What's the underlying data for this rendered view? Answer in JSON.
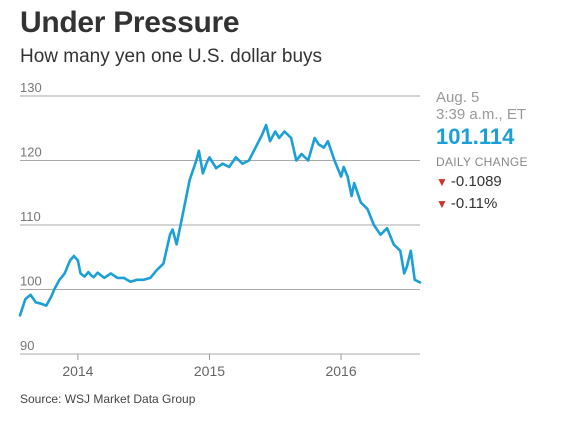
{
  "header": {
    "title": "Under Pressure",
    "subtitle": "How many yen one U.S. dollar buys"
  },
  "panel": {
    "date": "Aug. 5",
    "time": "3:39 a.m., ET",
    "value": "101.114",
    "change_label": "DAILY CHANGE",
    "change_abs": "-0.1089",
    "change_pct": "-0.11%",
    "arrow_icon": "down-triangle-icon"
  },
  "source": "Source: WSJ Market Data Group",
  "colors": {
    "line": "#1a9fd6",
    "grid": "#aaaaaa",
    "value": "#1a9fd6",
    "down": "#d0312d"
  },
  "chart_data": {
    "type": "line",
    "title": "Under Pressure",
    "subtitle": "How many yen one U.S. dollar buys",
    "ylim": [
      90,
      130
    ],
    "yticks": [
      130,
      120,
      110,
      100,
      90
    ],
    "xlim": [
      2013.56,
      2016.6
    ],
    "xticks": [
      2014,
      2015,
      2016
    ],
    "grid": "horizontal",
    "series": [
      {
        "x": [
          2013.56,
          2013.6,
          2013.64,
          2013.68,
          2013.72,
          2013.76,
          2013.8,
          2013.82,
          2013.86,
          2013.9,
          2013.94,
          2013.97,
          2014.0,
          2014.02,
          2014.05,
          2014.08,
          2014.1,
          2014.12,
          2014.15,
          2014.2,
          2014.25,
          2014.3,
          2014.35,
          2014.4,
          2014.45,
          2014.5,
          2014.55,
          2014.6,
          2014.65,
          2014.7,
          2014.72,
          2014.75,
          2014.8,
          2014.85,
          2014.9,
          2014.92,
          2014.95,
          2014.98,
          2015.0,
          2015.05,
          2015.1,
          2015.15,
          2015.2,
          2015.25,
          2015.3,
          2015.35,
          2015.4,
          2015.43,
          2015.46,
          2015.5,
          2015.53,
          2015.57,
          2015.62,
          2015.66,
          2015.7,
          2015.75,
          2015.8,
          2015.83,
          2015.87,
          2015.9,
          2015.95,
          2016.0,
          2016.02,
          2016.05,
          2016.08,
          2016.1,
          2016.15,
          2016.2,
          2016.25,
          2016.3,
          2016.35,
          2016.4,
          2016.45,
          2016.48,
          2016.5,
          2016.53,
          2016.56,
          2016.6
        ],
        "y": [
          96.0,
          98.5,
          99.2,
          98.0,
          97.8,
          97.5,
          99.0,
          100.0,
          101.5,
          102.5,
          104.5,
          105.2,
          104.5,
          102.5,
          102.0,
          102.7,
          102.2,
          101.9,
          102.6,
          101.8,
          102.5,
          101.8,
          101.8,
          101.2,
          101.5,
          101.5,
          101.8,
          103.0,
          104.0,
          108.5,
          109.3,
          107.0,
          112.0,
          117.0,
          120.0,
          121.5,
          118.0,
          119.7,
          120.5,
          118.8,
          119.5,
          119.0,
          120.5,
          119.5,
          120.0,
          122.0,
          124.0,
          125.5,
          123.0,
          124.5,
          123.5,
          124.5,
          123.5,
          120.0,
          121.0,
          120.0,
          123.5,
          122.5,
          122.0,
          123.0,
          120.0,
          117.5,
          119.0,
          117.5,
          114.5,
          116.5,
          113.5,
          112.5,
          110.0,
          108.5,
          109.5,
          107.0,
          106.0,
          102.5,
          103.5,
          106.0,
          101.5,
          101.1
        ]
      }
    ]
  }
}
